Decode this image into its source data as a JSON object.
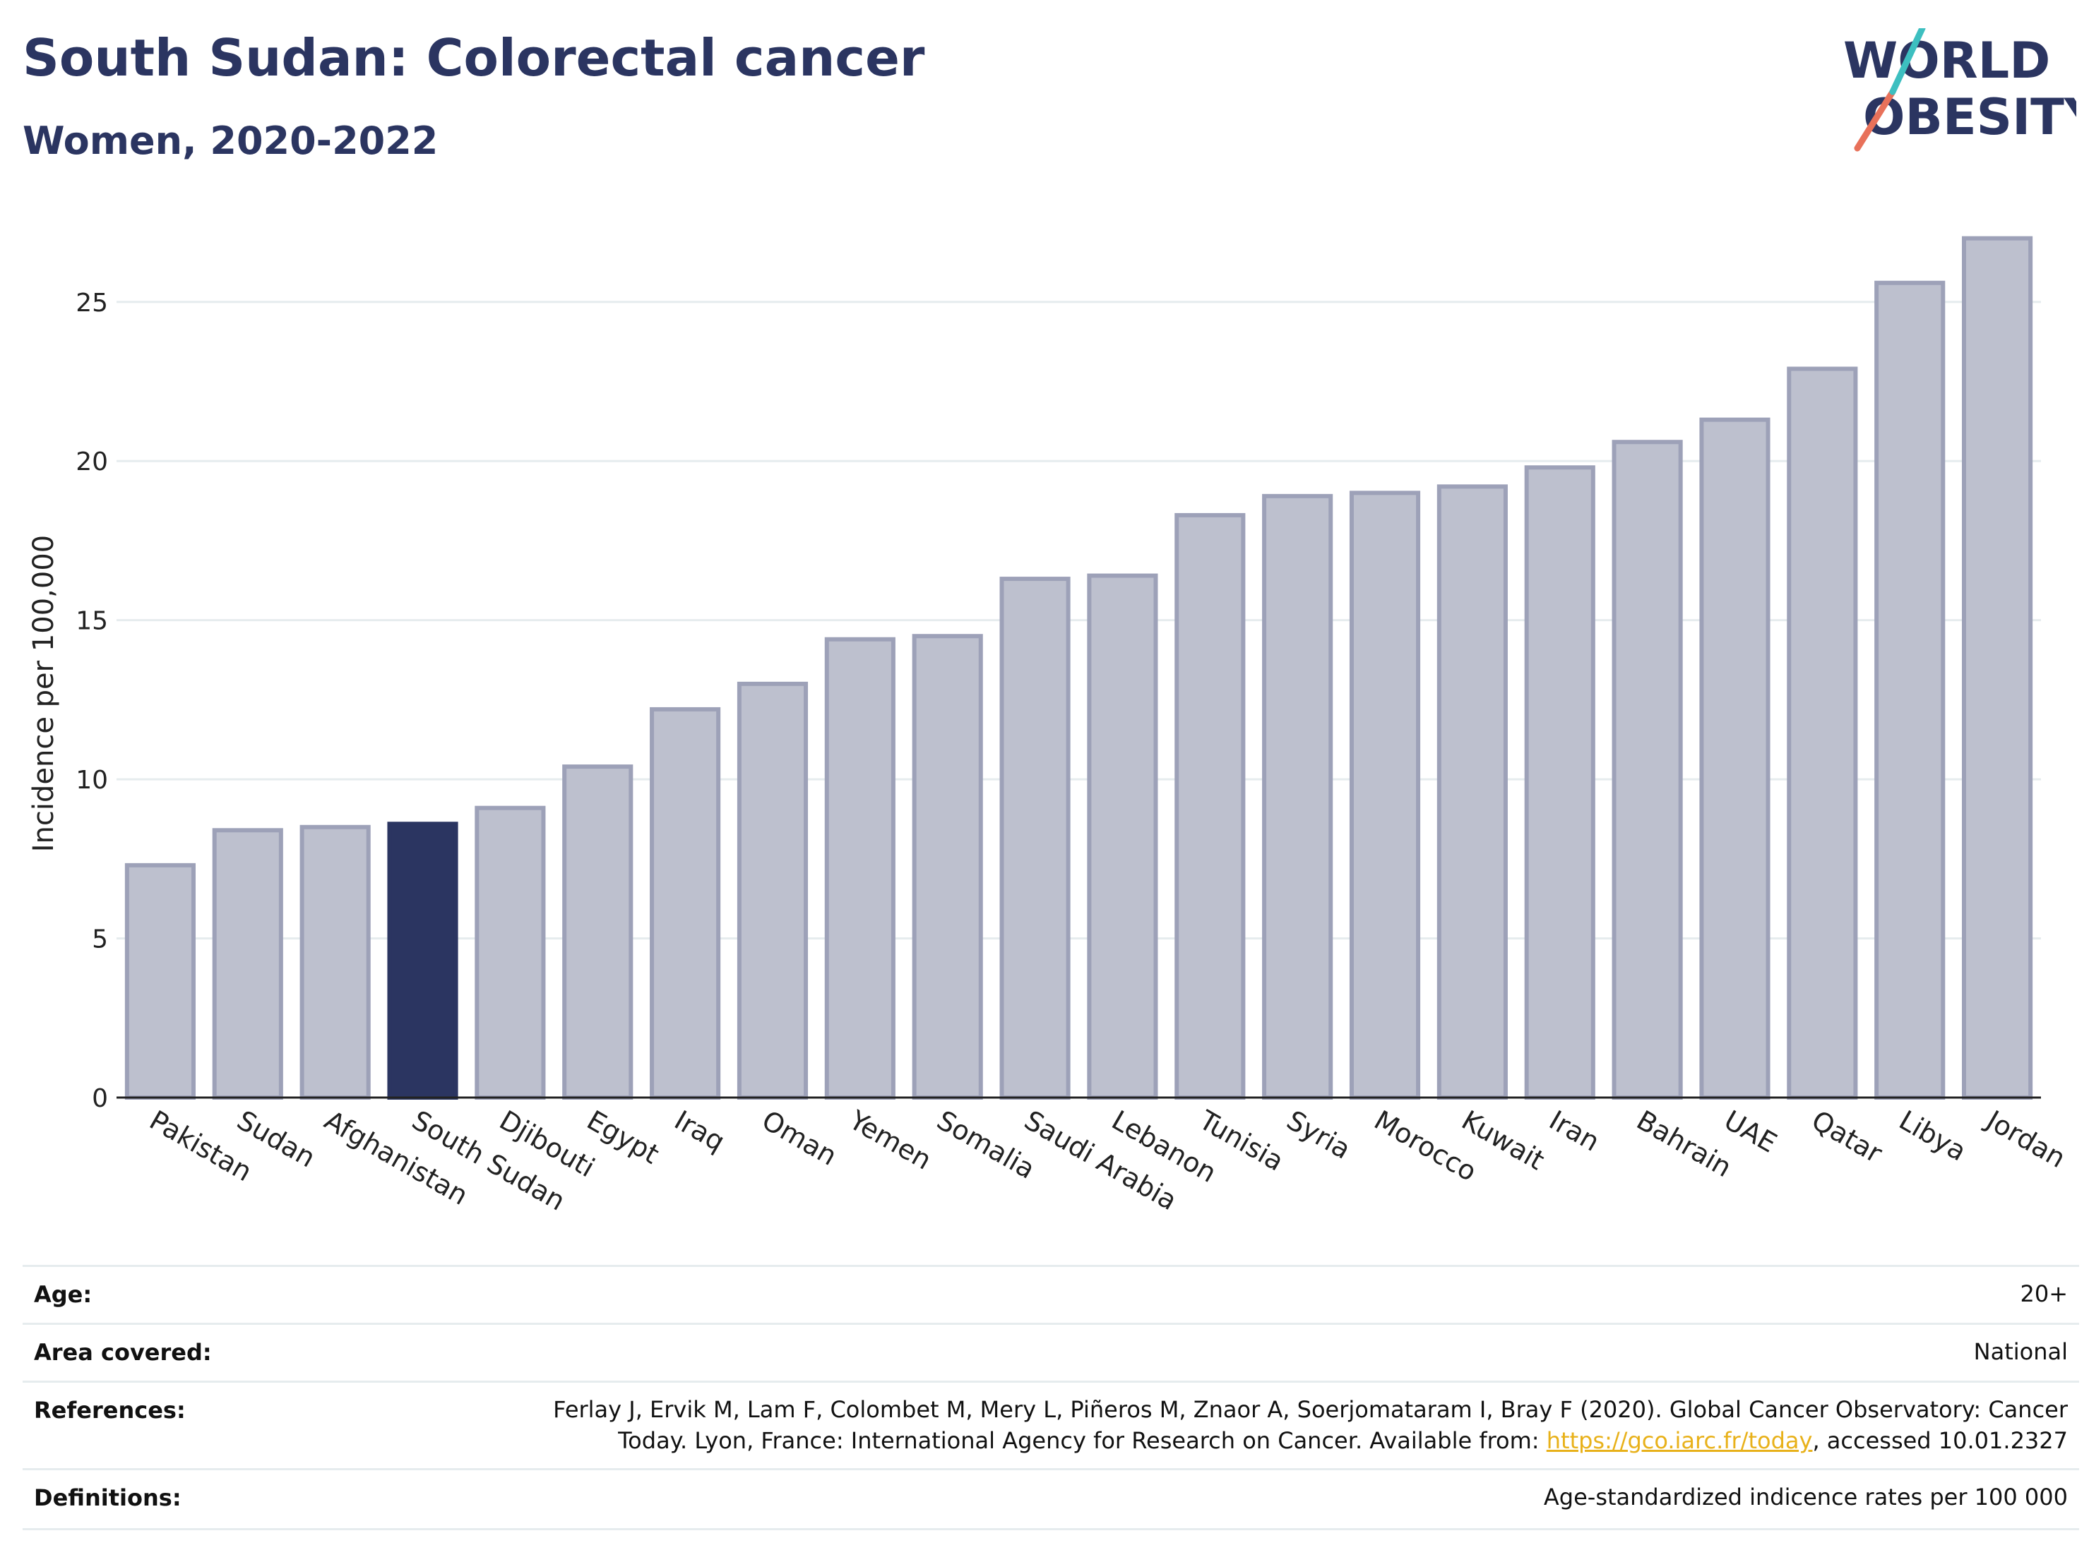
{
  "header": {
    "title": "South Sudan: Colorectal cancer",
    "subtitle": "Women, 2020-2022"
  },
  "logo": {
    "line1": "WORLD",
    "line2": "OBESITY"
  },
  "chart_data": {
    "type": "bar",
    "ylabel": "Incidence per 100,000",
    "ylim": [
      0,
      28.5
    ],
    "yticks": [
      0,
      5,
      10,
      15,
      20,
      25
    ],
    "categories": [
      "Pakistan",
      "Sudan",
      "Afghanistan",
      "South Sudan",
      "Djibouti",
      "Egypt",
      "Iraq",
      "Oman",
      "Yemen",
      "Somalia",
      "Saudi Arabia",
      "Lebanon",
      "Tunisia",
      "Syria",
      "Morocco",
      "Kuwait",
      "Iran",
      "Bahrain",
      "UAE",
      "Qatar",
      "Libya",
      "Jordan"
    ],
    "values": [
      7.3,
      8.4,
      8.5,
      8.6,
      9.1,
      10.4,
      12.2,
      13.0,
      14.4,
      14.5,
      16.3,
      16.4,
      18.3,
      18.9,
      19.0,
      19.2,
      19.8,
      20.6,
      21.3,
      22.9,
      25.6,
      27.0
    ],
    "highlight": "South Sudan",
    "colors": {
      "bar": "#bdc0ce",
      "bar_border": "#9da1b8",
      "highlight": "#2b3561",
      "grid": "#e6ecee",
      "axis": "#222222"
    },
    "grid": true
  },
  "meta": {
    "age_label": "Age:",
    "age_value": "20+",
    "area_label": "Area covered:",
    "area_value": "National",
    "references_label": "References:",
    "references_line1": "Ferlay J, Ervik M, Lam F, Colombet M, Mery L, Piñeros M, Znaor A, Soerjomataram I, Bray F (2020). Global Cancer Observatory: Cancer",
    "references_line2_pre": "Today. Lyon, France: International Agency for Research on Cancer. Available from: ",
    "references_link": "https://gco.iarc.fr/today",
    "references_line2_post": ", accessed 10.01.2327",
    "definitions_label": "Definitions:",
    "definitions_value": "Age-standardized indicence rates per 100 000"
  }
}
